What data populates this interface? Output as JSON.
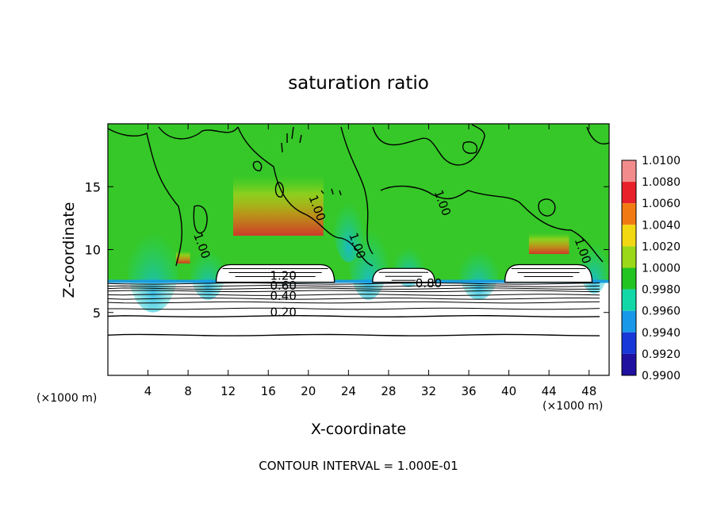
{
  "chart_data": {
    "type": "heatmap",
    "title": "saturation ratio",
    "xlabel": "X-coordinate",
    "ylabel": "Z-coordinate",
    "x_unit_left": "(×1000 m)",
    "x_unit_right": "(×1000 m)",
    "xlim": [
      0,
      50
    ],
    "ylim": [
      0,
      20
    ],
    "x_ticks": [
      4,
      8,
      12,
      16,
      20,
      24,
      28,
      32,
      36,
      40,
      44,
      48
    ],
    "x_tick_labels": [
      "4",
      "8",
      "12",
      "16",
      "20",
      "24",
      "28",
      "32",
      "36",
      "40",
      "44",
      "48"
    ],
    "y_ticks": [
      5,
      10,
      15
    ],
    "y_tick_labels": [
      "5",
      "10",
      "15"
    ],
    "contour_interval_text": "CONTOUR INTERVAL = 1.000E-01",
    "contour_labels": [
      {
        "text": "1.20",
        "x": 17.5,
        "y": 7.6
      },
      {
        "text": "0.60",
        "x": 17.5,
        "y": 6.8
      },
      {
        "text": "0.40",
        "x": 17.5,
        "y": 6.0
      },
      {
        "text": "0.20",
        "x": 17.5,
        "y": 4.7
      },
      {
        "text": "0.80",
        "x": 32.0,
        "y": 7.0
      },
      {
        "text": "1.00",
        "x": 9.0,
        "y": 10.2
      },
      {
        "text": "1.00",
        "x": 20.5,
        "y": 13.2
      },
      {
        "text": "1.00",
        "x": 33.0,
        "y": 13.6
      },
      {
        "text": "1.00",
        "x": 24.5,
        "y": 10.2
      },
      {
        "text": "1.00",
        "x": 47.0,
        "y": 9.8
      }
    ],
    "colorbar": {
      "levels": [
        "1.0100",
        "1.0080",
        "1.0060",
        "1.0040",
        "1.0020",
        "1.0000",
        "0.9980",
        "0.9960",
        "0.9940",
        "0.9920",
        "0.9900"
      ],
      "colors": [
        "#f28c8c",
        "#e8202a",
        "#f27a12",
        "#f2d812",
        "#9bd818",
        "#22c422",
        "#12d8a8",
        "#1898e8",
        "#1838d8",
        "#2010a0"
      ]
    },
    "saturated_regions": [
      {
        "x_start": 10.8,
        "x_end": 22.6,
        "z_top": 8.8
      },
      {
        "x_start": 26.4,
        "x_end": 32.6,
        "z_top": 8.5
      },
      {
        "x_start": 39.6,
        "x_end": 48.3,
        "z_top": 8.8
      }
    ],
    "surface_contours_z": [
      3.2,
      4.7,
      5.3,
      5.8,
      6.1,
      6.4,
      6.7,
      6.9,
      7.1,
      7.3
    ]
  }
}
